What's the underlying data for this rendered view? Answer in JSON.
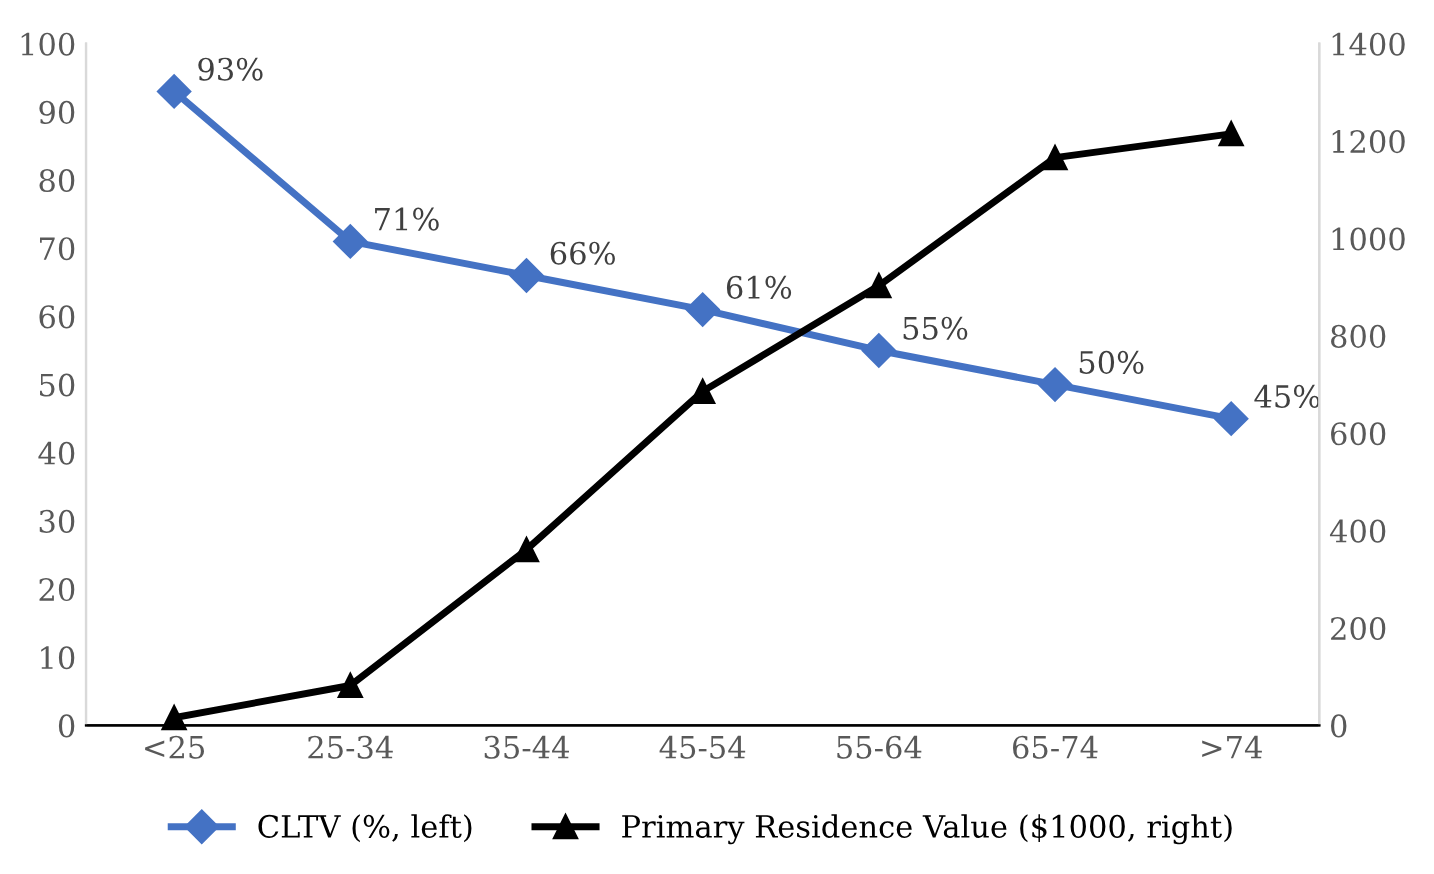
{
  "chart_data": {
    "type": "line",
    "categories": [
      "<25",
      "25-34",
      "35-44",
      "45-54",
      "55-64",
      "65-74",
      ">74"
    ],
    "series": [
      {
        "name": "CLTV (%, left)",
        "color": "#4472c4",
        "marker": "diamond",
        "values": [
          93,
          71,
          66,
          61,
          55,
          50,
          45
        ],
        "value_labels": [
          "93%",
          "71%",
          "66%",
          "61%",
          "55%",
          "50%",
          "45%"
        ]
      },
      {
        "name": "Primary Residence Value ($1000, right)",
        "color": "#000000",
        "marker": "triangle",
        "axis": "y2",
        "values": [
          16,
          82,
          361,
          686,
          903,
          1166,
          1215
        ]
      }
    ],
    "ylim": [
      0,
      100
    ],
    "yticks": [
      0,
      10,
      20,
      30,
      40,
      50,
      60,
      70,
      80,
      90,
      100
    ],
    "y2lim": [
      0,
      1400
    ],
    "y2ticks": [
      0,
      200,
      400,
      600,
      800,
      1000,
      1200,
      1400
    ],
    "grid": false,
    "legend": "bottom",
    "line_style": "solid"
  }
}
